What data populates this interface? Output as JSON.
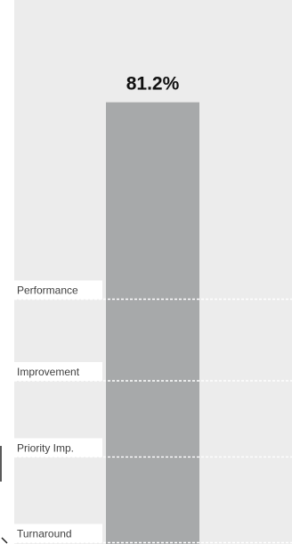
{
  "chart_data": {
    "type": "bar",
    "categories": [
      ""
    ],
    "values": [
      81.2
    ],
    "value_labels": [
      "81.2%"
    ],
    "ylim": [
      0,
      100
    ],
    "grid": false,
    "title": "",
    "xlabel": "",
    "ylabel": "",
    "reference_lines": [
      {
        "label": "Performance",
        "value": 45
      },
      {
        "label": "Improvement",
        "value": 30
      },
      {
        "label": "Priority Imp.",
        "value": 16
      },
      {
        "label": "Turnaround",
        "value": 0
      }
    ]
  },
  "colors": {
    "background": "#ececec",
    "bar": "#a7a9aa",
    "reference_line": "#ffffff",
    "label_text": "#404040",
    "value_text": "#111111"
  }
}
